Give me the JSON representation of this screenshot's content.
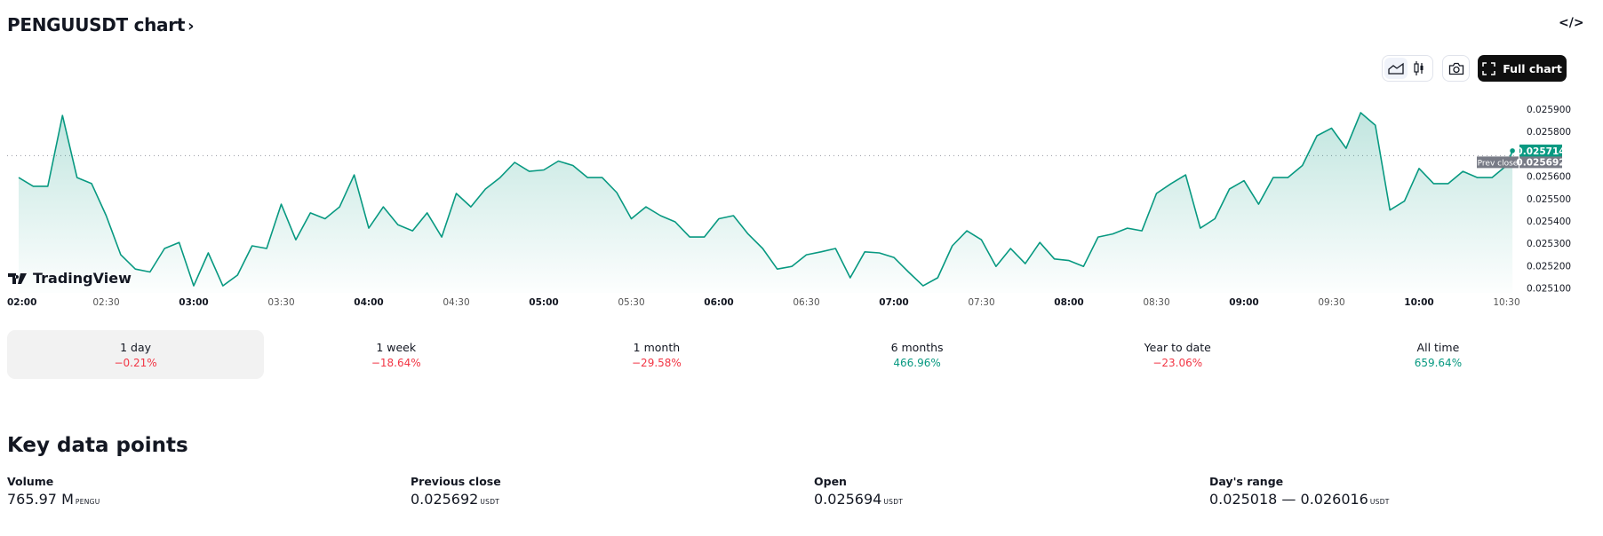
{
  "header": {
    "title": "PENGUUSDT chart",
    "chevron": "›",
    "embed_icon": "code-icon",
    "embed_glyph": "</>"
  },
  "toolbar": {
    "chart_styles": [
      {
        "name": "area-chart-icon",
        "active": true
      },
      {
        "name": "candles-icon",
        "active": false
      }
    ],
    "screenshot_icon": "camera-icon",
    "full_chart_label": "Full chart",
    "full_chart_icon": "fullscreen-icon"
  },
  "branding": {
    "logo_text": "TradingView"
  },
  "colors": {
    "line": "#089981",
    "up": "#089981",
    "down": "#f23645",
    "prev_close": "#787b86"
  },
  "chart_data": {
    "type": "area",
    "symbol": "PENGUUSDT",
    "ylim": [
      0.02508,
      0.02593
    ],
    "y_ticks": [
      "0.025100",
      "0.025200",
      "0.025300",
      "0.025400",
      "0.025500",
      "0.025600",
      "0.025700",
      "0.025800",
      "0.025900"
    ],
    "x_ticks": [
      {
        "label": "02:00",
        "major": true
      },
      {
        "label": "02:30",
        "major": false
      },
      {
        "label": "03:00",
        "major": true
      },
      {
        "label": "03:30",
        "major": false
      },
      {
        "label": "04:00",
        "major": true
      },
      {
        "label": "04:30",
        "major": false
      },
      {
        "label": "05:00",
        "major": true
      },
      {
        "label": "05:30",
        "major": false
      },
      {
        "label": "06:00",
        "major": true
      },
      {
        "label": "06:30",
        "major": false
      },
      {
        "label": "07:00",
        "major": true
      },
      {
        "label": "07:30",
        "major": false
      },
      {
        "label": "08:00",
        "major": true
      },
      {
        "label": "08:30",
        "major": false
      },
      {
        "label": "09:00",
        "major": true
      },
      {
        "label": "09:30",
        "major": false
      },
      {
        "label": "10:00",
        "major": true
      },
      {
        "label": "10:30",
        "major": false
      }
    ],
    "grid": false,
    "last_price": "0.025714",
    "prev_close_label": "Prev close",
    "prev_close": "0.025692",
    "x": [
      "02:00",
      "02:05",
      "02:10",
      "02:15",
      "02:20",
      "02:25",
      "02:30",
      "02:35",
      "02:40",
      "02:45",
      "02:50",
      "02:55",
      "03:00",
      "03:05",
      "03:10",
      "03:15",
      "03:20",
      "03:25",
      "03:30",
      "03:35",
      "03:40",
      "03:45",
      "03:50",
      "03:55",
      "04:00",
      "04:05",
      "04:10",
      "04:15",
      "04:20",
      "04:25",
      "04:30",
      "04:35",
      "04:40",
      "04:45",
      "04:50",
      "04:55",
      "05:00",
      "05:05",
      "05:10",
      "05:15",
      "05:20",
      "05:25",
      "05:30",
      "05:35",
      "05:40",
      "05:45",
      "05:50",
      "05:55",
      "06:00",
      "06:05",
      "06:10",
      "06:15",
      "06:20",
      "06:25",
      "06:30",
      "06:35",
      "06:40",
      "06:45",
      "06:50",
      "06:55",
      "07:00",
      "07:05",
      "07:10",
      "07:15",
      "07:20",
      "07:25",
      "07:30",
      "07:35",
      "07:40",
      "07:45",
      "07:50",
      "07:55",
      "08:00",
      "08:05",
      "08:10",
      "08:15",
      "08:20",
      "08:25",
      "08:30",
      "08:35",
      "08:40",
      "08:45",
      "08:50",
      "08:55",
      "09:00",
      "09:05",
      "09:10",
      "09:15",
      "09:20",
      "09:25",
      "09:30",
      "09:35",
      "09:40",
      "09:45",
      "09:50",
      "09:55",
      "10:00",
      "10:05",
      "10:10",
      "10:15",
      "10:20",
      "10:25",
      "10:30",
      "10:32"
    ],
    "values": [
      0.025594,
      0.025555,
      0.025555,
      0.025872,
      0.025594,
      0.025567,
      0.025424,
      0.025249,
      0.025185,
      0.025172,
      0.025277,
      0.025304,
      0.02511,
      0.025257,
      0.02511,
      0.025158,
      0.025289,
      0.025277,
      0.025475,
      0.025316,
      0.025436,
      0.02541,
      0.025463,
      0.025606,
      0.025368,
      0.025463,
      0.025383,
      0.025356,
      0.025436,
      0.025328,
      0.025523,
      0.025463,
      0.025543,
      0.025594,
      0.025662,
      0.025622,
      0.025628,
      0.025668,
      0.025648,
      0.025594,
      0.025594,
      0.025527,
      0.02541,
      0.025463,
      0.025424,
      0.025396,
      0.025328,
      0.025328,
      0.02541,
      0.025424,
      0.025342,
      0.025277,
      0.025185,
      0.025197,
      0.025249,
      0.025262,
      0.025277,
      0.025146,
      0.025262,
      0.025257,
      0.025237,
      0.025172,
      0.02511,
      0.025146,
      0.025289,
      0.025356,
      0.025316,
      0.025197,
      0.025277,
      0.025209,
      0.025304,
      0.02523,
      0.025223,
      0.025197,
      0.025328,
      0.025342,
      0.025368,
      0.025356,
      0.025523,
      0.025567,
      0.025606,
      0.025368,
      0.02541,
      0.025543,
      0.02558,
      0.025475,
      0.025594,
      0.025594,
      0.025648,
      0.025781,
      0.025815,
      0.025725,
      0.025884,
      0.025828,
      0.025449,
      0.025489,
      0.025635,
      0.025567,
      0.025567,
      0.025622,
      0.025594,
      0.025594,
      0.025648,
      0.025714
    ]
  },
  "periods": [
    {
      "label": "1 day",
      "value": "−0.21%",
      "dir": "neg",
      "active": true
    },
    {
      "label": "1 week",
      "value": "−18.64%",
      "dir": "neg",
      "active": false
    },
    {
      "label": "1 month",
      "value": "−29.58%",
      "dir": "neg",
      "active": false
    },
    {
      "label": "6 months",
      "value": "466.96%",
      "dir": "pos",
      "active": false
    },
    {
      "label": "Year to date",
      "value": "−23.06%",
      "dir": "neg",
      "active": false
    },
    {
      "label": "All time",
      "value": "659.64%",
      "dir": "pos",
      "active": false
    }
  ],
  "key_data": {
    "title": "Key data points",
    "items": [
      {
        "label": "Volume",
        "value": "765.97 M",
        "unit": "PENGU"
      },
      {
        "label": "Previous close",
        "value": "0.025692",
        "unit": "USDT"
      },
      {
        "label": "Open",
        "value": "0.025694",
        "unit": "USDT"
      },
      {
        "label": "Day's range",
        "value": "0.025018 — 0.026016",
        "unit": "USDT"
      }
    ]
  }
}
